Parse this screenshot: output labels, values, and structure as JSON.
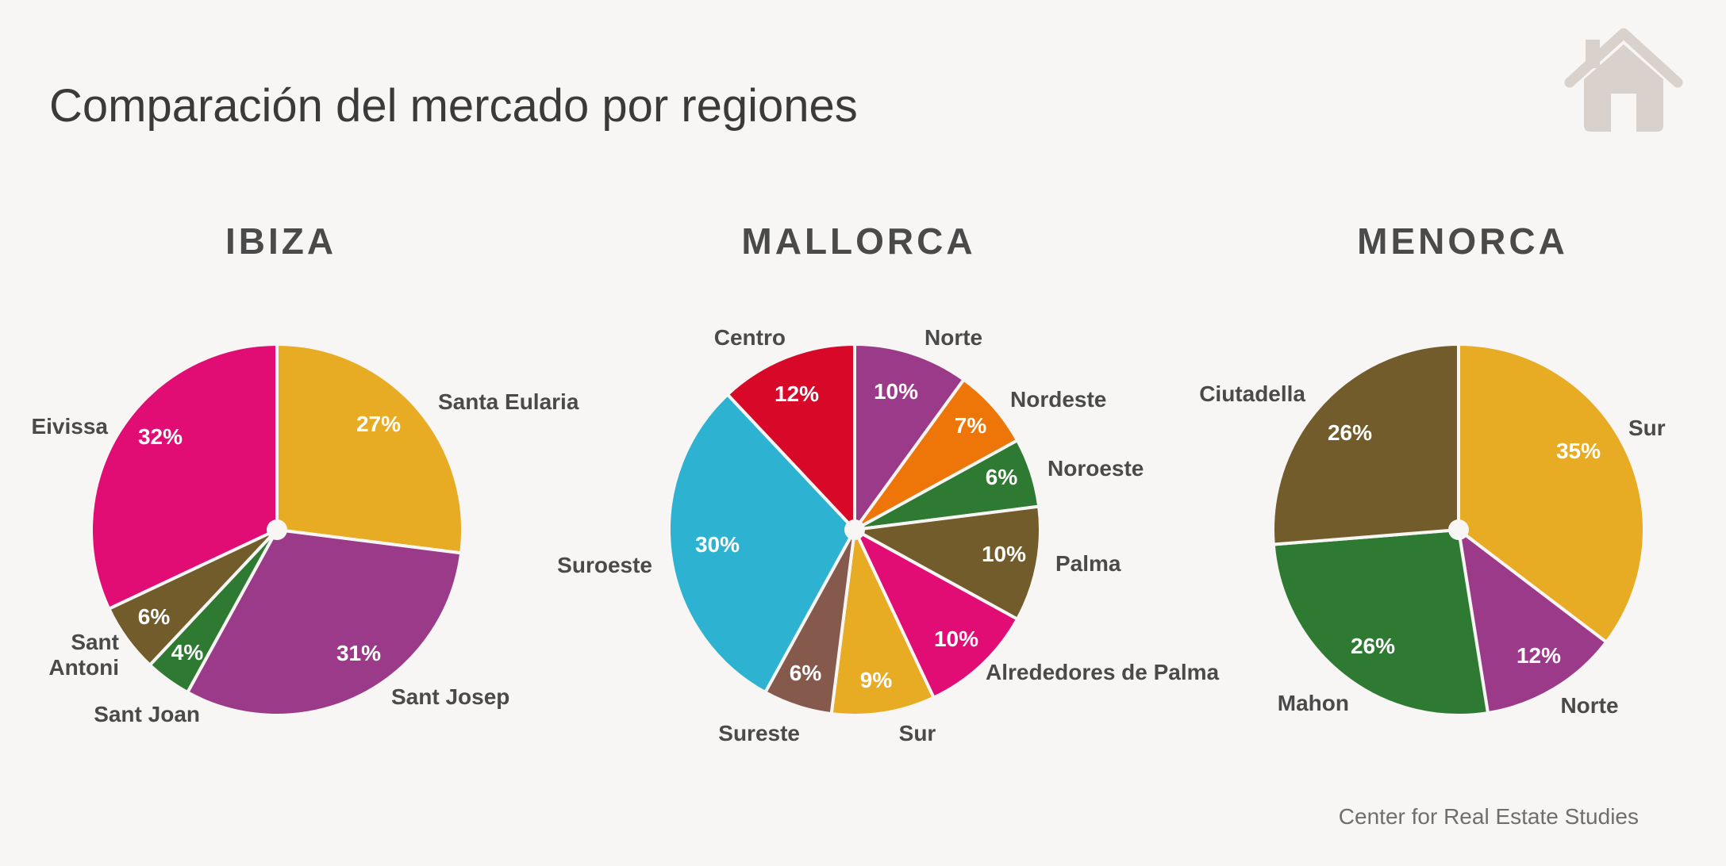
{
  "title": "Comparación del mercado por regiones",
  "source": "Center for Real Estate Studies",
  "icon": "house-icon",
  "colors": {
    "background": "#f7f6f4",
    "text": "#3a3a3a",
    "icon": "#d8d1cc"
  },
  "chart_data": [
    {
      "type": "pie",
      "title": "IBIZA",
      "start_angle_deg": 0,
      "direction": "clockwise",
      "slices": [
        {
          "label": "Santa Eularia",
          "value": 27,
          "value_label": "27%",
          "color": "#e8ac24"
        },
        {
          "label": "Sant Josep",
          "value": 31,
          "value_label": "31%",
          "color": "#9c3a8a"
        },
        {
          "label": "Sant Joan",
          "value": 4,
          "value_label": "4%",
          "color": "#2e7a33"
        },
        {
          "label": "Sant Antoni",
          "value": 6,
          "value_label": "6%",
          "color": "#735c2b"
        },
        {
          "label": "Eivissa",
          "value": 32,
          "value_label": "32%",
          "color": "#e20c75"
        }
      ]
    },
    {
      "type": "pie",
      "title": "MALLORCA",
      "start_angle_deg": 0,
      "direction": "clockwise",
      "slices": [
        {
          "label": "Norte",
          "value": 10,
          "value_label": "10%",
          "color": "#9c3a8a"
        },
        {
          "label": "Nordeste",
          "value": 7,
          "value_label": "7%",
          "color": "#ee7508"
        },
        {
          "label": "Noroeste",
          "value": 6,
          "value_label": "6%",
          "color": "#2e7a33"
        },
        {
          "label": "Palma",
          "value": 10,
          "value_label": "10%",
          "color": "#735c2b"
        },
        {
          "label": "Alrededores de Palma",
          "value": 10,
          "value_label": "10%",
          "color": "#e20c75"
        },
        {
          "label": "Sur",
          "value": 9,
          "value_label": "9%",
          "color": "#e8ac24"
        },
        {
          "label": "Sureste",
          "value": 6,
          "value_label": "6%",
          "color": "#855a4c"
        },
        {
          "label": "Suroeste",
          "value": 30,
          "value_label": "30%",
          "color": "#2db3d1"
        },
        {
          "label": "Centro",
          "value": 12,
          "value_label": "12%",
          "color": "#d80828"
        }
      ]
    },
    {
      "type": "pie",
      "title": "MENORCA",
      "start_angle_deg": 0,
      "direction": "clockwise",
      "slices": [
        {
          "label": "Sur",
          "value": 35,
          "value_label": "35%",
          "color": "#e8ac24"
        },
        {
          "label": "Norte",
          "value": 12,
          "value_label": "12%",
          "color": "#9c3a8a"
        },
        {
          "label": "Mahon",
          "value": 26,
          "value_label": "26%",
          "color": "#2e7a33"
        },
        {
          "label": "Ciutadella",
          "value": 26,
          "value_label": "26%",
          "color": "#735c2b"
        }
      ]
    }
  ]
}
